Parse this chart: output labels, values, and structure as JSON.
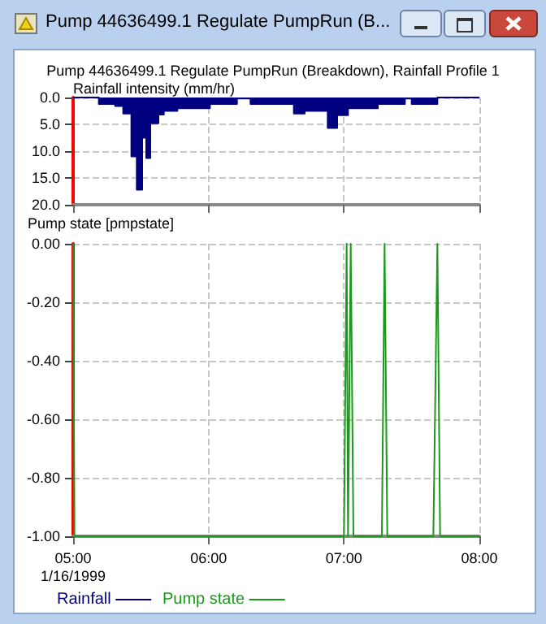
{
  "chart_data": [
    {
      "type": "area",
      "title": "Pump 44636499.1 Regulate PumpRun (Breakdown), Rainfall Profile 1",
      "ylabel": "Rainfall intensity (mm/hr)",
      "annotations": [
        "Pump 44636499.1 Regulate PumpRun (B..."
      ],
      "series": [
        {
          "name": "Rainfall",
          "color": "#000080",
          "x": [
            5,
            5.19,
            5.19,
            5.31,
            5.31,
            5.37,
            5.37,
            5.43,
            5.43,
            5.47,
            5.47,
            5.51,
            5.51,
            5.54,
            5.54,
            5.57,
            5.57,
            5.63,
            5.63,
            5.67,
            5.67,
            5.77,
            5.77,
            6.01,
            6.01,
            6.21,
            6.21,
            6.31,
            6.31,
            6.63,
            6.63,
            6.71,
            6.71,
            6.88,
            6.88,
            6.95,
            6.95,
            7.03,
            7.03,
            7.25,
            7.25,
            7.45,
            7.45,
            7.5,
            7.5,
            7.69,
            7.69,
            8
          ],
          "values": [
            0,
            0,
            1.2,
            1.2,
            1.6,
            1.6,
            3.0,
            3.0,
            11.0,
            11.0,
            17.2,
            17.2,
            7.5,
            7.5,
            11.3,
            11.3,
            4.8,
            4.8,
            3.2,
            3.2,
            2.5,
            2.5,
            2.0,
            2.0,
            1.2,
            1.2,
            0.2,
            0.2,
            1.2,
            1.2,
            3.0,
            3.0,
            2.5,
            2.5,
            5.7,
            5.7,
            3.3,
            3.3,
            2.0,
            2.0,
            1.2,
            1.2,
            0.2,
            0.2,
            1.2,
            1.2,
            0,
            0
          ]
        }
      ],
      "xlim": [
        5,
        8
      ],
      "xticks": [
        {
          "value": 5,
          "label": null
        },
        {
          "value": 6,
          "label": null
        },
        {
          "value": 7,
          "label": null
        },
        {
          "value": 8,
          "label": null
        }
      ],
      "ylim": [
        20,
        0
      ],
      "yticks": [
        {
          "value": 0,
          "label": "0.0"
        },
        {
          "value": 5,
          "label": "5.0"
        },
        {
          "value": 10,
          "label": "10.0"
        },
        {
          "value": 15,
          "label": "15.0"
        },
        {
          "value": 20,
          "label": "20.0"
        }
      ],
      "tick_labels": "y",
      "grid": true,
      "legend": "bottom left",
      "marker": "none"
    },
    {
      "type": "line",
      "ylabel": "Pump state [pmpstate]",
      "series": [
        {
          "name": "Pump state",
          "color": "#1a9a1a",
          "x": [
            5,
            5.01,
            7.0,
            7.02,
            7.03,
            7.05,
            7.07,
            7.28,
            7.3,
            7.32,
            7.66,
            7.69,
            7.71,
            8
          ],
          "values": [
            0,
            -1,
            -1,
            0,
            -1,
            0,
            -1,
            -1,
            0,
            -1,
            -1,
            0,
            -1,
            -1
          ]
        }
      ],
      "xlim": [
        5,
        8
      ],
      "xticks": [
        {
          "value": 5,
          "label": "05:00\n1/16/1999"
        },
        {
          "value": 6,
          "label": "06:00"
        },
        {
          "value": 7,
          "label": "07:00"
        },
        {
          "value": 8,
          "label": "08:00"
        }
      ],
      "ylim": [
        -1,
        0
      ],
      "yticks": [
        {
          "value": -1,
          "label": "-1.00"
        },
        {
          "value": -0.8,
          "label": "-0.80"
        },
        {
          "value": -0.6,
          "label": "-0.60"
        },
        {
          "value": -0.4,
          "label": "-0.40"
        },
        {
          "value": -0.2,
          "label": "-0.20"
        },
        {
          "value": 0,
          "label": "0.00"
        }
      ],
      "grid": true,
      "legend": "bottom left",
      "marker": "none",
      "line_style": "solid"
    }
  ]
}
